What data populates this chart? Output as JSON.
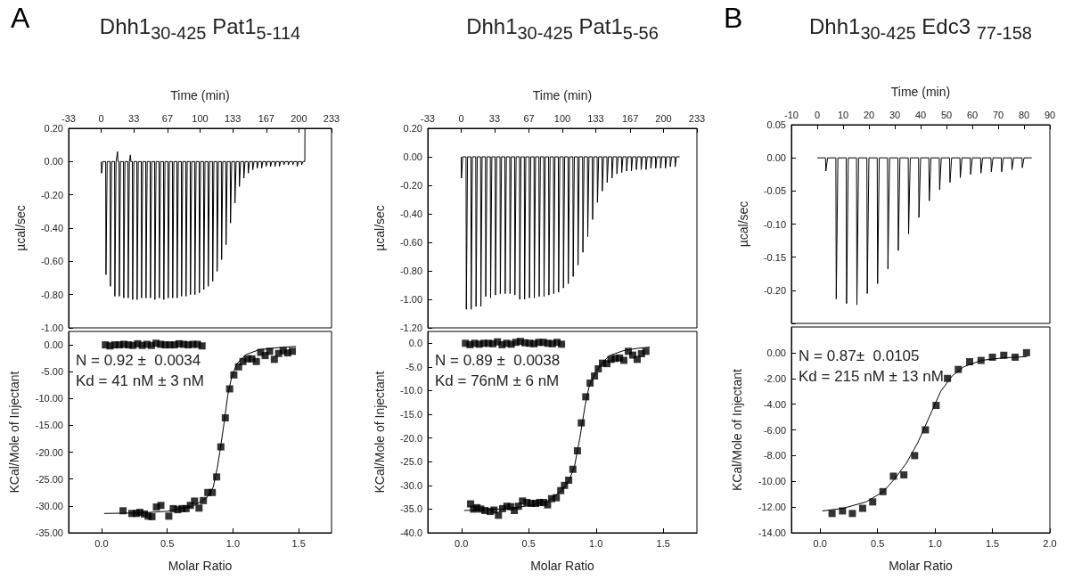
{
  "chart_data": [
    {
      "type": "line",
      "title": "Dhh1$_{30-425}$ Pat1$_{5-114}$",
      "annotations": [
        "A"
      ],
      "xlabel": "Time (min)",
      "ylabel": "µcal/sec",
      "xlim": [
        -33,
        233
      ],
      "xticks": [
        -33,
        0,
        33,
        67,
        100,
        133,
        167,
        200,
        233
      ],
      "ylim": [
        -1.0,
        0.2
      ],
      "yticks": [
        {
          "value": 0.2,
          "label": "0.20"
        },
        {
          "value": 0,
          "label": "0.00"
        },
        {
          "value": -0.2,
          "label": "-0.20"
        },
        {
          "value": -0.4,
          "label": "-0.40"
        },
        {
          "value": -0.6,
          "label": "-0.60"
        },
        {
          "value": -0.8,
          "label": "-0.80"
        },
        {
          "value": -1.0,
          "label": "-1.00"
        }
      ],
      "series": [
        {
          "color": "#000000",
          "x": [
            0,
            0.3,
            1.5,
            4.5,
            4.8,
            6,
            9,
            9.3,
            10.5,
            13.5,
            13.8,
            15,
            16.5,
            17,
            18,
            18.3,
            19.5,
            22.5,
            22.8,
            24,
            27,
            27.3,
            28.5,
            29.5,
            30,
            31.5,
            31.8,
            33,
            36,
            36.3,
            37.5,
            40.5,
            40.8,
            42,
            45,
            45.3,
            46.5,
            49.5,
            49.8,
            51,
            54,
            54.3,
            55.5,
            58.5,
            58.8,
            60,
            63,
            63.3,
            64.5,
            67.5,
            67.8,
            69,
            72,
            72.3,
            73.5,
            76.5,
            76.8,
            78,
            81,
            81.3,
            82.5,
            85.5,
            85.8,
            87,
            90,
            90.3,
            91.5,
            94.5,
            94.8,
            96,
            99,
            99.3,
            100.5,
            103.5,
            103.8,
            105,
            108,
            108.3,
            109.5,
            112.5,
            112.8,
            114,
            117,
            117.3,
            118.5,
            121.5,
            121.8,
            123,
            126,
            126.3,
            127.5,
            130.5,
            130.8,
            132,
            135,
            135.3,
            136.5,
            139.5,
            139.8,
            141,
            144,
            144.3,
            145.5,
            148.5,
            148.8,
            150,
            153,
            153.3,
            154.5,
            157.5,
            157.8,
            159,
            162,
            162.3,
            163.5,
            166.5,
            166.8,
            168,
            171,
            171.3,
            172.5,
            175.5,
            175.8,
            177,
            180,
            180.3,
            181.5,
            184.5,
            184.8,
            186,
            189,
            189.3,
            190.5,
            193.5,
            193.8,
            195,
            198,
            198.3,
            199.5,
            202.5,
            202.8,
            204,
            206,
            206.1
          ],
          "values": [
            0,
            -0.07,
            0,
            0,
            -0.68,
            0,
            0,
            -0.75,
            0,
            0,
            -0.81,
            0,
            0.06,
            0,
            0,
            -0.81,
            0,
            0,
            -0.82,
            0,
            0,
            -0.82,
            0,
            0.04,
            0,
            0,
            -0.83,
            0,
            0,
            -0.83,
            0,
            0,
            -0.82,
            0,
            0,
            -0.82,
            0,
            0,
            -0.82,
            0,
            0,
            -0.83,
            0,
            0,
            -0.82,
            0,
            0,
            -0.83,
            0,
            0,
            -0.82,
            0,
            0,
            -0.82,
            0,
            0,
            -0.82,
            0,
            0,
            -0.81,
            0,
            0,
            -0.81,
            0,
            0,
            -0.8,
            0,
            0,
            -0.8,
            0,
            0,
            -0.79,
            0,
            0,
            -0.77,
            0,
            0,
            -0.75,
            0,
            0,
            -0.72,
            0,
            0,
            -0.66,
            0,
            0,
            -0.59,
            0,
            0,
            -0.5,
            0,
            0,
            -0.37,
            0,
            0,
            -0.25,
            0,
            0,
            -0.15,
            0,
            0,
            -0.1,
            0,
            0,
            -0.07,
            0,
            0,
            -0.05,
            0,
            0,
            -0.04,
            0,
            0,
            -0.04,
            0,
            0,
            -0.03,
            0,
            0,
            -0.03,
            0,
            0,
            -0.03,
            0,
            0,
            -0.03,
            0,
            0,
            -0.02,
            0,
            0,
            -0.02,
            0,
            0,
            -0.02,
            0,
            0,
            -0.03,
            0,
            0,
            -0.02,
            0,
            0,
            0.2
          ]
        }
      ]
    },
    {
      "type": "line",
      "title": "Dhh1$_{30-425}$ Pat1$_{5-56}$",
      "xlabel": "Time (min)",
      "ylabel": "µcal/sec",
      "xlim": [
        -33,
        233
      ],
      "xticks": [
        -33,
        0,
        33,
        67,
        100,
        133,
        167,
        200,
        233
      ],
      "ylim": [
        -1.2,
        0.2
      ],
      "yticks": [
        {
          "value": 0.2,
          "label": "0.20"
        },
        {
          "value": 0,
          "label": "0.00"
        },
        {
          "value": -0.2,
          "label": "-0.20"
        },
        {
          "value": -0.4,
          "label": "-0.40"
        },
        {
          "value": -0.6,
          "label": "-0.60"
        },
        {
          "value": -0.8,
          "label": "-0.80"
        },
        {
          "value": -1.0,
          "label": "-1.00"
        },
        {
          "value": -1.2,
          "label": "-1.20"
        }
      ],
      "series": [
        {
          "color": "#000000",
          "x": [
            0,
            0.3,
            1.5,
            4.8,
            5.1,
            6.3,
            9.6,
            9.9,
            11.1,
            14.4,
            14.7,
            15.9,
            19.2,
            19.5,
            20.7,
            24,
            24.3,
            25.5,
            28.8,
            29.1,
            30.3,
            33.6,
            33.9,
            35.1,
            38.4,
            38.7,
            39.9,
            43.2,
            43.5,
            44.7,
            48,
            48.3,
            49.5,
            52.8,
            53.1,
            54.3,
            57.6,
            57.9,
            59.1,
            62.4,
            62.7,
            63.9,
            67.2,
            67.5,
            68.7,
            72,
            72.3,
            73.5,
            76.8,
            77.1,
            78.3,
            81.6,
            81.9,
            83.1,
            86.4,
            86.7,
            87.9,
            91.2,
            91.5,
            92.7,
            96,
            96.3,
            97.5,
            100.8,
            101.1,
            102.3,
            105.6,
            105.9,
            107.1,
            110.4,
            110.7,
            111.9,
            115.2,
            115.5,
            116.7,
            120,
            120.3,
            121.5,
            124.8,
            125.1,
            126.3,
            129.6,
            129.9,
            131.1,
            134.4,
            134.7,
            135.9,
            139.2,
            139.5,
            140.7,
            144,
            144.3,
            145.5,
            148.8,
            149.1,
            150.3,
            153.6,
            153.9,
            155.1,
            158.4,
            158.7,
            159.9,
            163.2,
            163.5,
            164.7,
            168,
            168.3,
            169.5,
            172.8,
            173.1,
            174.3,
            177.6,
            177.9,
            179.1,
            182.4,
            182.7,
            183.9,
            187.2,
            187.5,
            188.7,
            192,
            192.3,
            193.5,
            196.8,
            197.1,
            198.3,
            201.6,
            201.9,
            203.1,
            206.4,
            206.7,
            207.9,
            211.2,
            211.5,
            212.7,
            216
          ],
          "values": [
            0,
            -0.15,
            0,
            0,
            -1.07,
            0,
            0,
            -1.07,
            0,
            0,
            -1.05,
            0,
            0,
            -1.05,
            0,
            0,
            -0.98,
            0,
            0,
            -0.99,
            0,
            0,
            -0.97,
            0,
            0,
            -0.96,
            0,
            0,
            -0.96,
            0,
            0,
            -0.96,
            0,
            0,
            -0.97,
            0,
            0,
            -1.0,
            0,
            0,
            -1.0,
            0,
            0,
            -0.99,
            0,
            0,
            -0.99,
            0,
            0,
            -0.98,
            0,
            0,
            -0.98,
            0,
            0,
            -0.97,
            0,
            0,
            -0.96,
            0,
            0,
            -0.95,
            0,
            0,
            -0.92,
            0,
            0,
            -0.89,
            0,
            0,
            -0.84,
            0,
            0,
            -0.76,
            0,
            0,
            -0.67,
            0,
            0,
            -0.56,
            0,
            0,
            -0.44,
            0,
            0,
            -0.32,
            0,
            0,
            -0.24,
            0,
            0,
            -0.18,
            0,
            0,
            -0.15,
            0,
            0,
            -0.12,
            0,
            0,
            -0.11,
            0,
            0,
            -0.1,
            0,
            0,
            -0.1,
            0,
            0,
            -0.09,
            0,
            0,
            -0.09,
            0,
            0,
            -0.09,
            0,
            0,
            -0.08,
            0,
            0,
            -0.08,
            0,
            0,
            -0.08,
            0,
            0,
            -0.08,
            0,
            0,
            -0.07,
            0,
            0,
            -0.07,
            0,
            0
          ]
        }
      ]
    },
    {
      "type": "line",
      "title": "Dhh1$_{30-425}$ Edc3 $_{77-158}$",
      "annotations": [
        "B"
      ],
      "xlabel": "Time (min)",
      "ylabel": "µcal/sec",
      "xlim": [
        -10,
        90
      ],
      "xticks": [
        -10,
        0,
        10,
        20,
        30,
        40,
        50,
        60,
        70,
        80,
        90
      ],
      "ylim": [
        -0.25,
        0.05
      ],
      "yticks": [
        {
          "value": 0.05,
          "label": "0.05"
        },
        {
          "value": 0,
          "label": "0.00"
        },
        {
          "value": -0.05,
          "label": "-0.05"
        },
        {
          "value": -0.1,
          "label": "-0.10"
        },
        {
          "value": -0.15,
          "label": "-0.15"
        },
        {
          "value": -0.2,
          "label": "-0.20"
        },
        {
          "value": -0.25,
          "label": null
        }
      ],
      "series": [
        {
          "color": "#000000",
          "x": [
            0,
            3.2,
            3.35,
            4,
            7.2,
            7.35,
            8,
            11.2,
            11.35,
            12,
            15.2,
            15.35,
            16,
            19.2,
            19.35,
            20,
            23.2,
            23.35,
            24,
            27.2,
            27.35,
            28,
            31.2,
            31.35,
            32,
            35.2,
            35.35,
            36,
            39.2,
            39.35,
            40,
            43.2,
            43.35,
            44,
            47.2,
            47.35,
            48,
            51.2,
            51.35,
            52,
            55.2,
            55.35,
            56,
            59.2,
            59.35,
            60,
            63.2,
            63.35,
            64,
            67.2,
            67.35,
            68,
            71.2,
            71.35,
            72,
            75.2,
            75.35,
            76,
            79.2,
            79.35,
            80,
            83
          ],
          "values": [
            0,
            0,
            -0.02,
            0,
            0,
            -0.213,
            0,
            0,
            -0.22,
            0,
            0,
            -0.222,
            0,
            0,
            -0.205,
            0,
            0,
            -0.19,
            0,
            0,
            -0.168,
            0,
            0,
            -0.14,
            0,
            0,
            -0.115,
            0,
            0,
            -0.09,
            0,
            0,
            -0.065,
            0,
            0,
            -0.048,
            0,
            0,
            -0.037,
            0,
            0,
            -0.03,
            0,
            0,
            -0.025,
            0,
            0,
            -0.023,
            0,
            0,
            -0.021,
            0,
            0,
            -0.021,
            0,
            0,
            -0.018,
            0,
            0,
            -0.015,
            0,
            0
          ]
        }
      ]
    },
    {
      "type": "scatter",
      "marker": "square",
      "annotations": [
        "N = 0.92 ±  0.0034",
        "Kd = 41 nM ± 3 nM"
      ],
      "xlabel": "Molar Ratio",
      "ylabel": "KCal/Mole of Injectant",
      "xlim": [
        -0.25,
        1.75
      ],
      "xticks": [
        {
          "value": 0,
          "label": "0.0"
        },
        0.5,
        {
          "value": 1,
          "label": "1.0"
        },
        1.5
      ],
      "ylim": [
        -35,
        2.5
      ],
      "yticks": [
        {
          "value": 0,
          "label": "0.00"
        },
        {
          "value": -5,
          "label": "-5.00"
        },
        {
          "value": -10,
          "label": "-10.00"
        },
        {
          "value": -15,
          "label": "-15.00"
        },
        {
          "value": -20,
          "label": "-20.00"
        },
        {
          "value": -25,
          "label": "-25.00"
        },
        {
          "value": -30,
          "label": "-30.00"
        },
        {
          "value": -35,
          "label": "-35.00"
        }
      ],
      "series": [
        {
          "color": "#000000",
          "x": [
            0.03,
            0.065,
            0.1,
            0.135,
            0.17,
            0.205,
            0.24,
            0.275,
            0.31,
            0.345,
            0.38,
            0.415,
            0.45,
            0.485,
            0.52,
            0.555,
            0.59,
            0.625,
            0.66,
            0.695,
            0.73,
            0.765
          ],
          "values": [
            0,
            -0.2,
            0,
            0,
            0.1,
            0,
            -0.1,
            0.2,
            -0.1,
            0.1,
            -0.1,
            0.3,
            0.1,
            0,
            0,
            0,
            0.2,
            0.1,
            0,
            0.1,
            0.1,
            -0.2
          ]
        },
        {
          "color": "#000000",
          "x": [
            0.164,
            0.231,
            0.265,
            0.292,
            0.326,
            0.355,
            0.384,
            0.418,
            0.452,
            0.512,
            0.546,
            0.58,
            0.613,
            0.643,
            0.676,
            0.708,
            0.742,
            0.775,
            0.809,
            0.843,
            0.876,
            0.908,
            0.942,
            0.975,
            1.007,
            1.043,
            1.076,
            1.11,
            1.144,
            1.178,
            1.211,
            1.245,
            1.279,
            1.315,
            1.348,
            1.382,
            1.416,
            1.452
          ],
          "values": [
            -30.9,
            -31.4,
            -31.4,
            -31.2,
            -31.5,
            -31.9,
            -32.0,
            -30.2,
            -29.9,
            -31.9,
            -30.5,
            -30.7,
            -30.5,
            -30.5,
            -29.9,
            -29.1,
            -30.4,
            -29.0,
            -27.5,
            -27.5,
            -24.6,
            -19.0,
            -13.6,
            -8.2,
            -5.6,
            -4.1,
            -3.1,
            -2.6,
            -2.6,
            -3.1,
            -1.4,
            -2.0,
            -1.2,
            -2.7,
            -1.6,
            -1.1,
            -1.5,
            -1.2
          ]
        },
        {
          "type": "line",
          "marker": "none",
          "color": "#000000",
          "x": [
            0.02,
            0.3,
            0.5,
            0.7,
            0.8,
            0.85,
            0.88,
            0.9,
            0.93,
            0.96,
            0.99,
            1.03,
            1.1,
            1.2,
            1.35,
            1.48
          ],
          "values": [
            -31.4,
            -31.3,
            -31.0,
            -30.0,
            -28.5,
            -26.5,
            -23,
            -20,
            -15,
            -9.5,
            -6,
            -3.5,
            -1.8,
            -0.9,
            -0.5,
            -0.3
          ]
        }
      ]
    },
    {
      "type": "scatter",
      "marker": "square",
      "annotations": [
        "N = 0.89 ±  0.0038",
        "Kd = 76nM ± 6 nM"
      ],
      "xlabel": "Molar Ratio",
      "ylabel": "KCal/Mole of Injectant",
      "xlim": [
        -0.25,
        1.75
      ],
      "xticks": [
        {
          "value": 0,
          "label": "0.0"
        },
        0.5,
        {
          "value": 1,
          "label": "1.0"
        },
        1.5
      ],
      "ylim": [
        -40,
        2.5
      ],
      "yticks": [
        {
          "value": 0,
          "label": "0.0"
        },
        {
          "value": -5,
          "label": "-5.0"
        },
        {
          "value": -10,
          "label": "-10.0"
        },
        {
          "value": -15,
          "label": "-15.0"
        },
        {
          "value": -20,
          "label": "-20.0"
        },
        {
          "value": -25,
          "label": "-25.0"
        },
        {
          "value": -30,
          "label": "-30.0"
        },
        {
          "value": -35,
          "label": "-35.0"
        },
        {
          "value": -40,
          "label": "-40.0"
        }
      ],
      "series": [
        {
          "color": "#000000",
          "x": [
            0.03,
            0.064,
            0.098,
            0.132,
            0.166,
            0.2,
            0.234,
            0.268,
            0.302,
            0.336,
            0.37,
            0.404,
            0.438,
            0.472,
            0.506,
            0.54,
            0.574,
            0.608,
            0.642,
            0.676,
            0.71,
            0.744
          ],
          "values": [
            0,
            -0.3,
            0,
            -0.2,
            0,
            0,
            -0.1,
            0.3,
            -0.3,
            0,
            -0.2,
            0.2,
            0.4,
            0.1,
            0,
            -0.1,
            0.2,
            0.2,
            0,
            -0.1,
            0.2,
            -0.2
          ]
        },
        {
          "color": "#000000",
          "x": [
            0.068,
            0.09,
            0.116,
            0.144,
            0.175,
            0.214,
            0.242,
            0.275,
            0.306,
            0.338,
            0.367,
            0.393,
            0.424,
            0.454,
            0.487,
            0.52,
            0.552,
            0.581,
            0.611,
            0.64,
            0.67,
            0.705,
            0.738,
            0.766,
            0.797,
            0.828,
            0.862,
            0.891,
            0.924,
            0.956,
            0.989,
            1.017,
            1.048,
            1.081,
            1.111,
            1.142,
            1.175,
            1.207,
            1.24,
            1.273,
            1.306,
            1.338,
            1.371
          ],
          "values": [
            -33.9,
            -35.0,
            -34.7,
            -35.0,
            -35.3,
            -35.5,
            -35.2,
            -36.3,
            -34.9,
            -34.4,
            -34.5,
            -35.3,
            -34.4,
            -33.3,
            -33.6,
            -33.8,
            -33.8,
            -33.6,
            -33.6,
            -34.1,
            -32.8,
            -32.6,
            -31.1,
            -30.0,
            -28.9,
            -26.6,
            -22.7,
            -16.8,
            -11.3,
            -8.4,
            -6.9,
            -5.4,
            -4.2,
            -4.3,
            -3.4,
            -3.2,
            -3.1,
            -3.6,
            -1.7,
            -2.5,
            -3.4,
            -2.2,
            -1.7
          ]
        },
        {
          "type": "line",
          "marker": "none",
          "color": "#000000",
          "x": [
            0.02,
            0.3,
            0.5,
            0.65,
            0.75,
            0.8,
            0.84,
            0.88,
            0.92,
            0.95,
            1.0,
            1.05,
            1.1,
            1.2,
            1.3,
            1.4
          ],
          "values": [
            -35.3,
            -35.0,
            -34.3,
            -33.2,
            -31,
            -29,
            -26,
            -20,
            -13,
            -9,
            -6,
            -4,
            -2.6,
            -1.6,
            -1.1,
            -0.8
          ]
        }
      ]
    },
    {
      "type": "scatter",
      "marker": "square",
      "annotations": [
        "N = 0.87±  0.0105",
        "Kd = 215 nM ± 13 nM"
      ],
      "xlabel": "Molar Ratio",
      "ylabel": "KCal/Mole of Injectant",
      "xlim": [
        -0.25,
        2.0
      ],
      "xticks": [
        {
          "value": 0,
          "label": "0.0"
        },
        0.5,
        {
          "value": 1,
          "label": "1.0"
        },
        1.5,
        {
          "value": 2,
          "label": "2.0"
        }
      ],
      "ylim": [
        -14,
        2
      ],
      "yticks": [
        {
          "value": 0,
          "label": "0.00"
        },
        {
          "value": -2,
          "label": "-2.00"
        },
        {
          "value": -4,
          "label": "-4.00"
        },
        {
          "value": -6,
          "label": "-6.00"
        },
        {
          "value": -8,
          "label": "-8.00"
        },
        {
          "value": -10,
          "label": "-10.00"
        },
        {
          "value": -12,
          "label": "-12.00"
        },
        {
          "value": -14,
          "label": "-14.00"
        }
      ],
      "series": [
        {
          "color": "#000000",
          "x": [
            0.104,
            0.195,
            0.281,
            0.37,
            0.458,
            0.547,
            0.638,
            0.729,
            0.823,
            0.917,
            1.01,
            1.109,
            1.203,
            1.302,
            1.401,
            1.5,
            1.599,
            1.698,
            1.797
          ],
          "values": [
            -12.5,
            -12.3,
            -12.5,
            -12.1,
            -11.6,
            -10.8,
            -9.6,
            -9.5,
            -8.0,
            -6.0,
            -4.1,
            -2.0,
            -1.3,
            -0.7,
            -0.6,
            -0.35,
            -0.2,
            -0.35,
            0.0
          ]
        },
        {
          "type": "line",
          "marker": "none",
          "color": "#000000",
          "x": [
            0.02,
            0.2,
            0.4,
            0.55,
            0.65,
            0.75,
            0.85,
            0.95,
            1.05,
            1.15,
            1.25,
            1.4,
            1.6,
            1.8
          ],
          "values": [
            -12.3,
            -12.1,
            -11.6,
            -10.8,
            -9.8,
            -8.6,
            -7.0,
            -5.0,
            -3.0,
            -1.8,
            -1.1,
            -0.6,
            -0.4,
            -0.3
          ]
        }
      ]
    }
  ]
}
